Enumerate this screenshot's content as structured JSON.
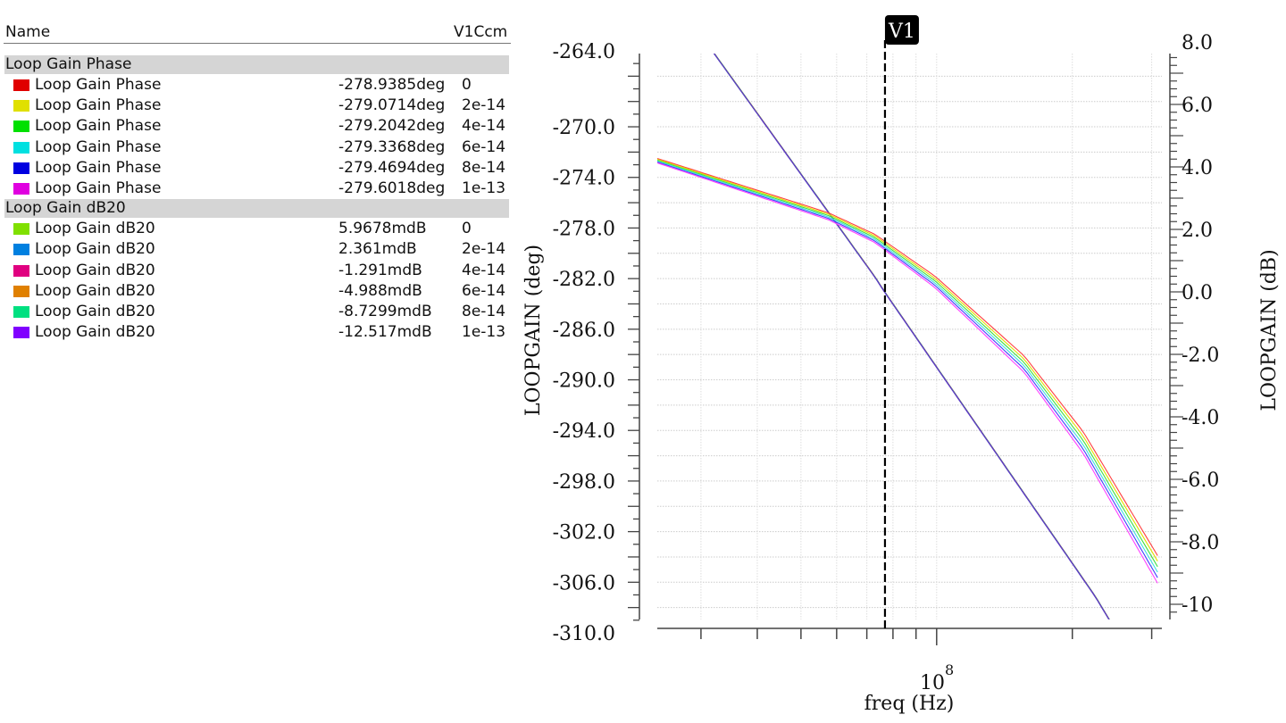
{
  "legend": {
    "name_header": "Name",
    "param_header": "V1Ccm",
    "groups": [
      {
        "title": "Loop Gain Phase",
        "rows": [
          {
            "label": "Loop Gain Phase",
            "value": "-278.9385deg",
            "param": "0",
            "color": "#e00000"
          },
          {
            "label": "Loop Gain Phase",
            "value": "-279.0714deg",
            "param": "2e-14",
            "color": "#e0e000"
          },
          {
            "label": "Loop Gain Phase",
            "value": "-279.2042deg",
            "param": "4e-14",
            "color": "#00e000"
          },
          {
            "label": "Loop Gain Phase",
            "value": "-279.3368deg",
            "param": "6e-14",
            "color": "#00e0e0"
          },
          {
            "label": "Loop Gain Phase",
            "value": "-279.4694deg",
            "param": "8e-14",
            "color": "#0000e0"
          },
          {
            "label": "Loop Gain Phase",
            "value": "-279.6018deg",
            "param": "1e-13",
            "color": "#e000e0"
          }
        ]
      },
      {
        "title": "Loop Gain dB20",
        "rows": [
          {
            "label": "Loop Gain dB20",
            "value": "5.9678mdB",
            "param": "0",
            "color": "#80e000"
          },
          {
            "label": "Loop Gain dB20",
            "value": "2.361mdB",
            "param": "2e-14",
            "color": "#0080e0"
          },
          {
            "label": "Loop Gain dB20",
            "value": "-1.291mdB",
            "param": "4e-14",
            "color": "#e00080"
          },
          {
            "label": "Loop Gain dB20",
            "value": "-4.988mdB",
            "param": "6e-14",
            "color": "#e08000"
          },
          {
            "label": "Loop Gain dB20",
            "value": "-8.7299mdB",
            "param": "8e-14",
            "color": "#00e080"
          },
          {
            "label": "Loop Gain dB20",
            "value": "-12.517mdB",
            "param": "1e-13",
            "color": "#8000ff"
          }
        ]
      }
    ]
  },
  "chart_data": {
    "type": "line",
    "xlabel": "freq (Hz)",
    "xscale": "log",
    "xlim": [
      24000000.0,
      316000000.0
    ],
    "x_tick_label": {
      "base": "10",
      "exp": "8"
    },
    "ylabel_left": "LOOPGAIN (deg)",
    "ylim_left": [
      -310,
      -264
    ],
    "yticks_left": [
      "-264.0",
      "-270.0",
      "-274.0",
      "-278.0",
      "-282.0",
      "-286.0",
      "-290.0",
      "-294.0",
      "-298.0",
      "-302.0",
      "-306.0",
      "-310.0"
    ],
    "ylabel_right": "LOOPGAIN (dB)",
    "ylim_right": [
      -10.5,
      7.6
    ],
    "yticks_right": [
      "8.0",
      "6.0",
      "4.0",
      "2.0",
      "0.0",
      "-2.0",
      "-4.0",
      "-6.0",
      "-8.0",
      "-10"
    ],
    "grid": true,
    "marker": {
      "label": "V1",
      "freq": 76800000.0
    },
    "phase_log10f": [
      7.38,
      7.76,
      7.863,
      7.996,
      8.194,
      8.325,
      8.497
    ],
    "phase_base_deg": [
      -272.5,
      -276.8,
      -278.5,
      -281.8,
      -288.1,
      -294.1,
      -304.3
    ],
    "phase_spread_deg": [
      0.35,
      0.55,
      0.65,
      0.9,
      1.3,
      1.7,
      2.2
    ],
    "gain_log10f": [
      7.507,
      7.863,
      7.885,
      8.352,
      8.382
    ],
    "gain_db": [
      7.63,
      0.49,
      0.0,
      -9.74,
      -10.46
    ],
    "series_phase_colors": [
      "#ff4040",
      "#e0e000",
      "#40e040",
      "#40e0e0",
      "#4040ff",
      "#ff40ff"
    ],
    "series_gain_colors": [
      "#80e000",
      "#0080e0",
      "#e00080",
      "#e08000",
      "#00e080",
      "#6030d0"
    ]
  }
}
